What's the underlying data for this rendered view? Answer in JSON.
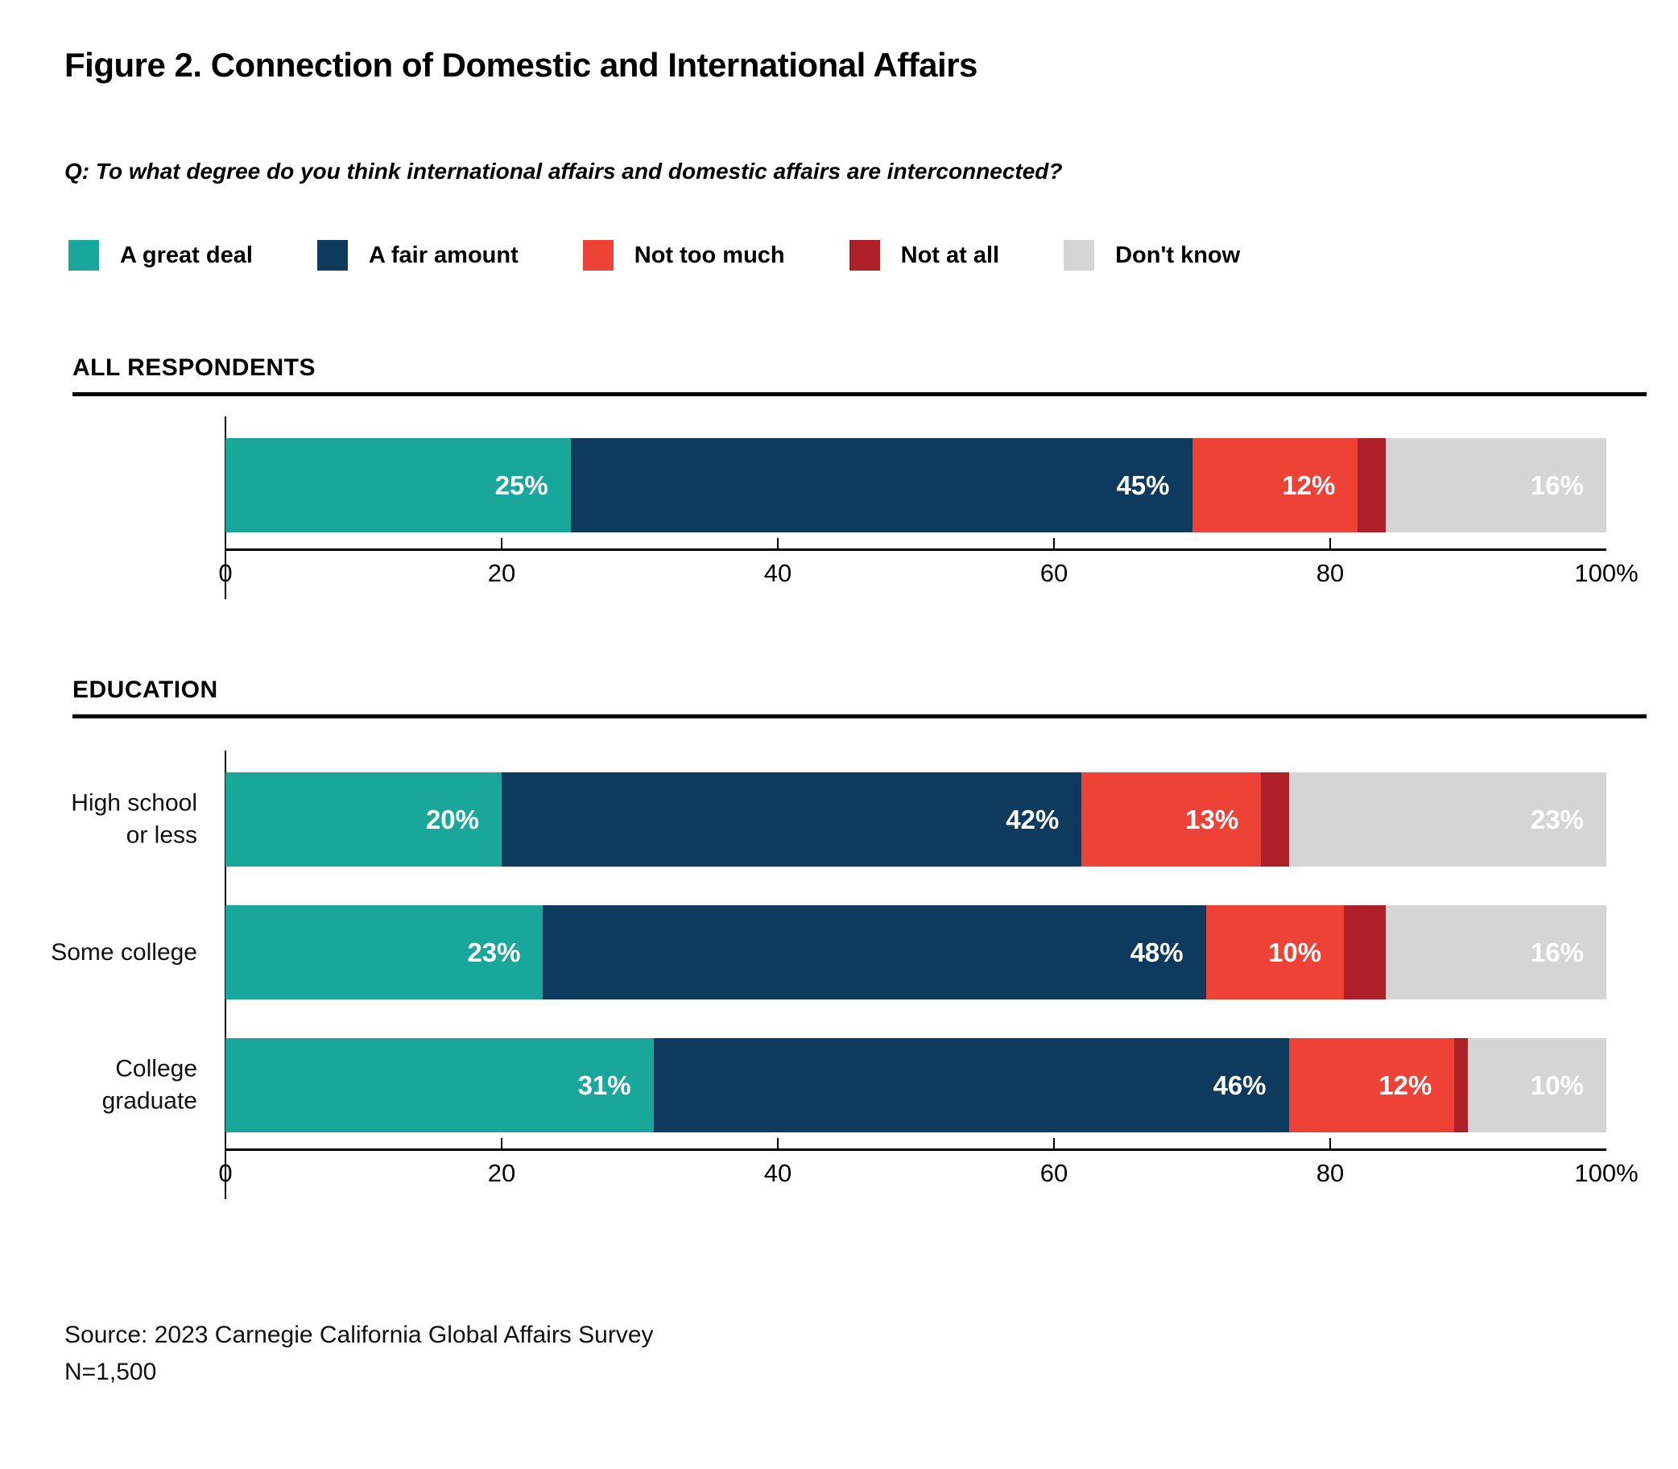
{
  "title": "Figure 2. Connection of Domestic and International Affairs",
  "question": "Q: To what degree do you think international affairs and domestic affairs are interconnected?",
  "legend": [
    {
      "label": "A great deal",
      "color": "#19A79C"
    },
    {
      "label": "A fair amount",
      "color": "#0E3A5E"
    },
    {
      "label": "Not too much",
      "color": "#EF4237"
    },
    {
      "label": "Not at all",
      "color": "#AE1F28"
    },
    {
      "label": "Don't know",
      "color": "#D5D5D5"
    }
  ],
  "sections": [
    {
      "heading": "ALL RESPONDENTS"
    },
    {
      "heading": "EDUCATION"
    }
  ],
  "chart_data": [
    {
      "type": "bar",
      "orientation": "horizontal",
      "stacked": true,
      "title": "ALL RESPONDENTS",
      "categories": [
        ""
      ],
      "categories_display": [
        [
          ""
        ]
      ],
      "series": [
        {
          "name": "A great deal",
          "values": [
            25
          ]
        },
        {
          "name": "A fair amount",
          "values": [
            45
          ]
        },
        {
          "name": "Not too much",
          "values": [
            12
          ]
        },
        {
          "name": "Not at all",
          "values": [
            2
          ]
        },
        {
          "name": "Don't know",
          "values": [
            16
          ]
        }
      ],
      "xlim": [
        0,
        100
      ],
      "xticks": [
        "0",
        "20",
        "40",
        "60",
        "80",
        "100%"
      ],
      "grid": false,
      "legend_position": "top",
      "value_suffix": "%"
    },
    {
      "type": "bar",
      "orientation": "horizontal",
      "stacked": true,
      "title": "EDUCATION",
      "categories": [
        "High school or less",
        "Some college",
        "College graduate"
      ],
      "categories_display": [
        [
          "High school",
          "or less"
        ],
        [
          "Some college"
        ],
        [
          "College",
          "graduate"
        ]
      ],
      "series": [
        {
          "name": "A great deal",
          "values": [
            20,
            23,
            31
          ]
        },
        {
          "name": "A fair amount",
          "values": [
            42,
            48,
            46
          ]
        },
        {
          "name": "Not too much",
          "values": [
            13,
            10,
            12
          ]
        },
        {
          "name": "Not at all",
          "values": [
            2,
            3,
            1
          ]
        },
        {
          "name": "Don't know",
          "values": [
            23,
            16,
            10
          ]
        }
      ],
      "xlim": [
        0,
        100
      ],
      "xticks": [
        "0",
        "20",
        "40",
        "60",
        "80",
        "100%"
      ],
      "grid": false,
      "value_suffix": "%"
    }
  ],
  "source": {
    "line1": "Source: 2023 Carnegie California Global Affairs Survey",
    "line2": "N=1,500"
  }
}
